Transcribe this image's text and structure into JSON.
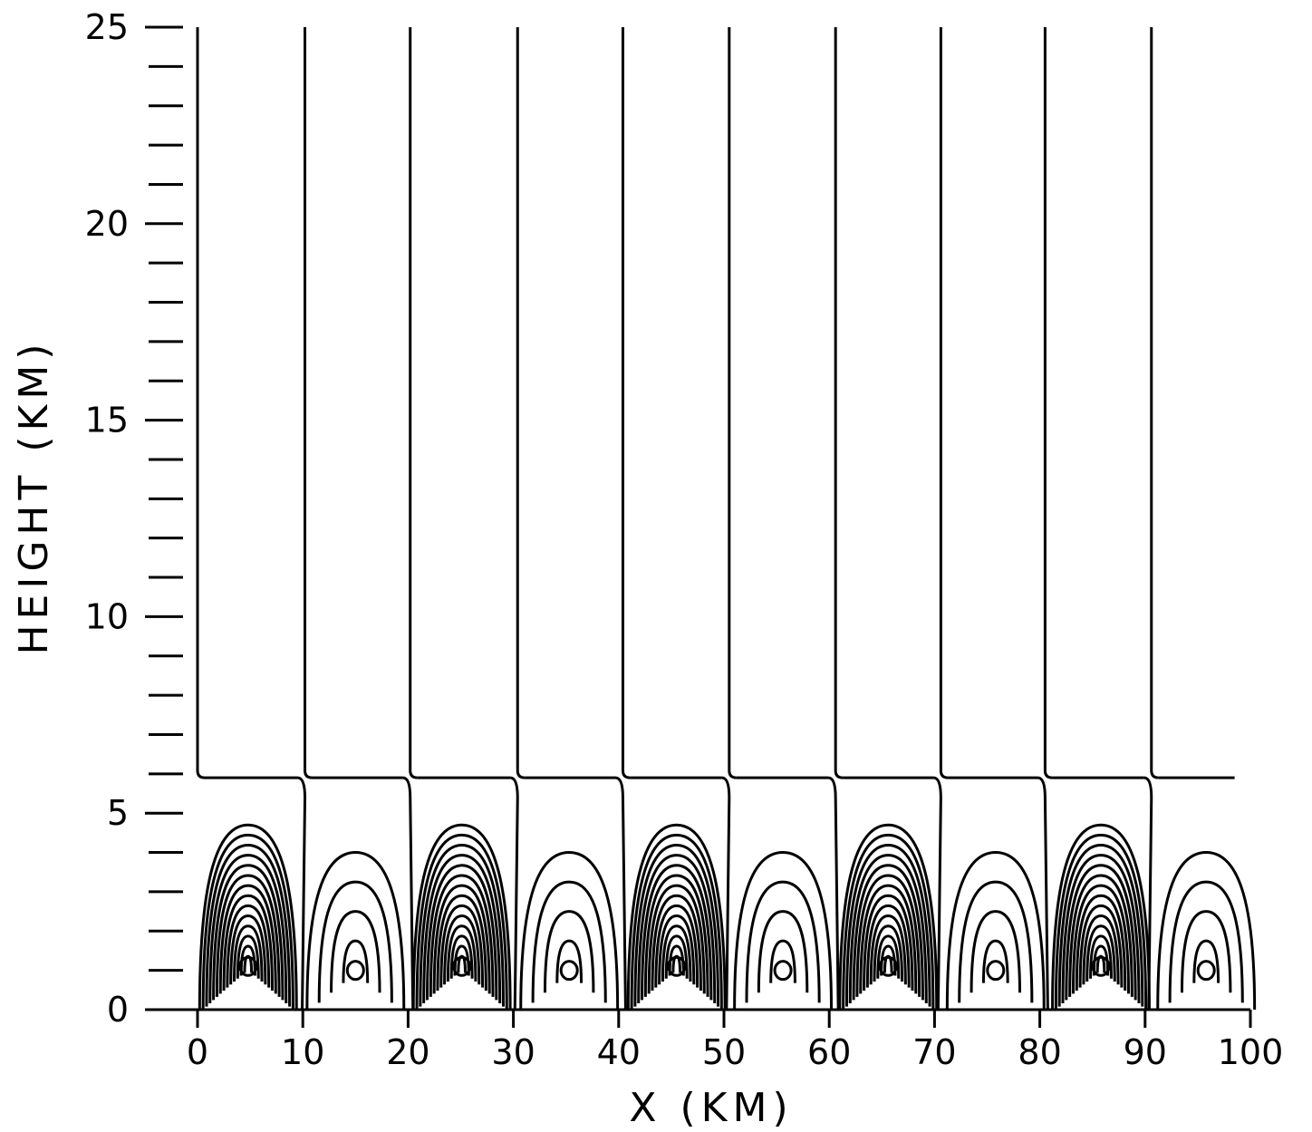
{
  "chart_data": {
    "type": "contour",
    "title": "",
    "xlabel": "X (KM)",
    "ylabel": "HEIGHT (KM)",
    "xlim": [
      0,
      100
    ],
    "ylim": [
      0,
      25
    ],
    "x_ticks": [
      0,
      10,
      20,
      30,
      40,
      50,
      60,
      70,
      80,
      90,
      100
    ],
    "y_ticks": [
      0,
      5,
      10,
      15,
      20,
      25
    ],
    "y_minor_tick_step": 1,
    "grid": false,
    "boundaries": {
      "x_positions": [
        0,
        10.2,
        20.2,
        30.4,
        40.4,
        50.5,
        60.6,
        70.6,
        80.5,
        90.6
      ],
      "flat_height": 5.9,
      "top_height": 25
    },
    "cells": [
      {
        "center_x": 4.8,
        "center_height": 1.1,
        "type": "strong",
        "max_height": 4.7
      },
      {
        "center_x": 15.0,
        "center_height": 1.0,
        "type": "weak",
        "max_height": 4.0
      },
      {
        "center_x": 25.1,
        "center_height": 1.1,
        "type": "strong",
        "max_height": 4.7
      },
      {
        "center_x": 35.3,
        "center_height": 1.0,
        "type": "weak",
        "max_height": 4.0
      },
      {
        "center_x": 45.5,
        "center_height": 1.1,
        "type": "strong",
        "max_height": 4.7
      },
      {
        "center_x": 55.6,
        "center_height": 1.0,
        "type": "weak",
        "max_height": 4.0
      },
      {
        "center_x": 65.6,
        "center_height": 1.1,
        "type": "strong",
        "max_height": 4.7
      },
      {
        "center_x": 75.8,
        "center_height": 1.0,
        "type": "weak",
        "max_height": 4.0
      },
      {
        "center_x": 85.8,
        "center_height": 1.1,
        "type": "strong",
        "max_height": 4.7
      },
      {
        "center_x": 95.8,
        "center_height": 1.0,
        "type": "weak",
        "max_height": 4.0
      }
    ]
  }
}
